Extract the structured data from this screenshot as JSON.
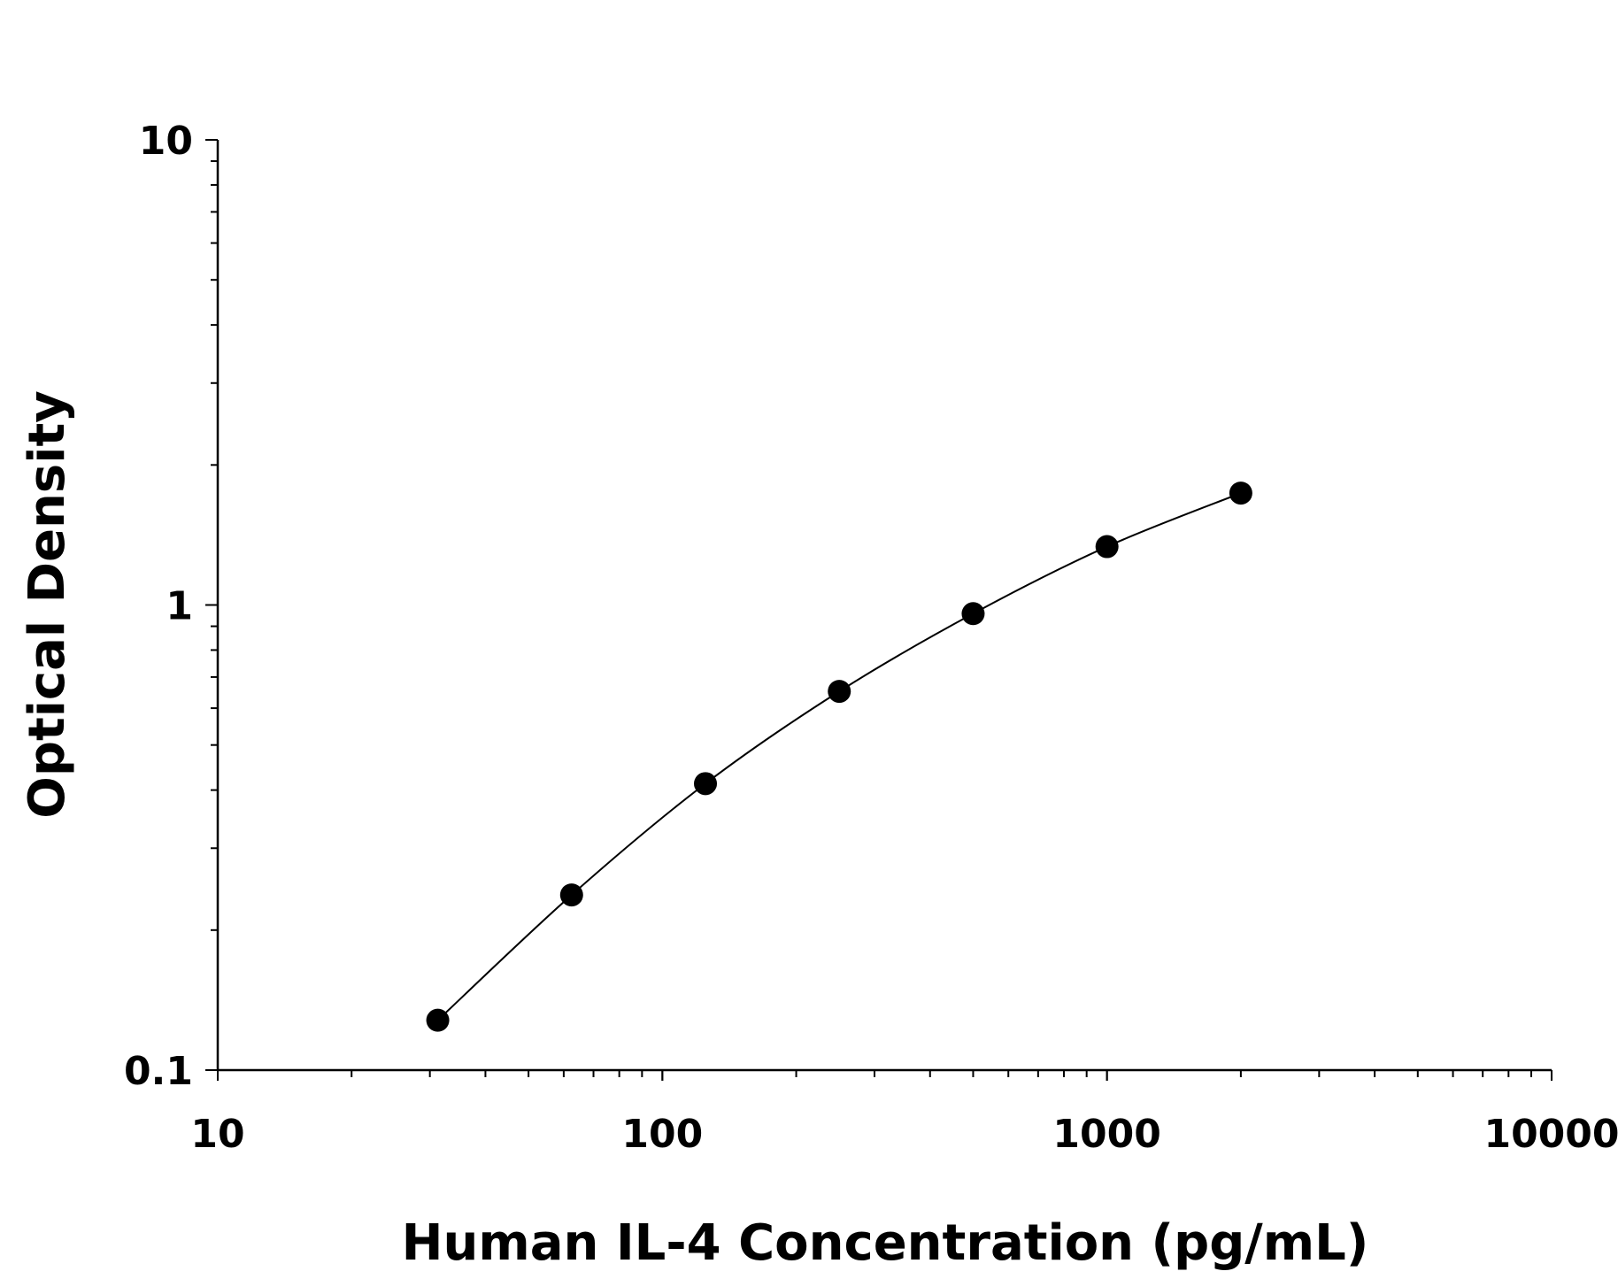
{
  "chart_data": {
    "type": "scatter",
    "title": "",
    "xlabel": "Human IL-4 Concentration (pg/mL)",
    "ylabel": "Optical Density",
    "xscale": "log",
    "yscale": "log",
    "xlim": [
      10,
      10000
    ],
    "ylim": [
      0.1,
      10
    ],
    "xticks": [
      "10",
      "100",
      "1000",
      "10000"
    ],
    "yticks": [
      "0.1",
      "1",
      "10"
    ],
    "grid": false,
    "legend": "none",
    "marker_color": "#000000",
    "line": "fitted curve",
    "x": [
      31.25,
      62.5,
      125,
      250,
      500,
      1000,
      2000
    ],
    "y": [
      0.128,
      0.238,
      0.413,
      0.652,
      0.958,
      1.335,
      1.74
    ]
  }
}
